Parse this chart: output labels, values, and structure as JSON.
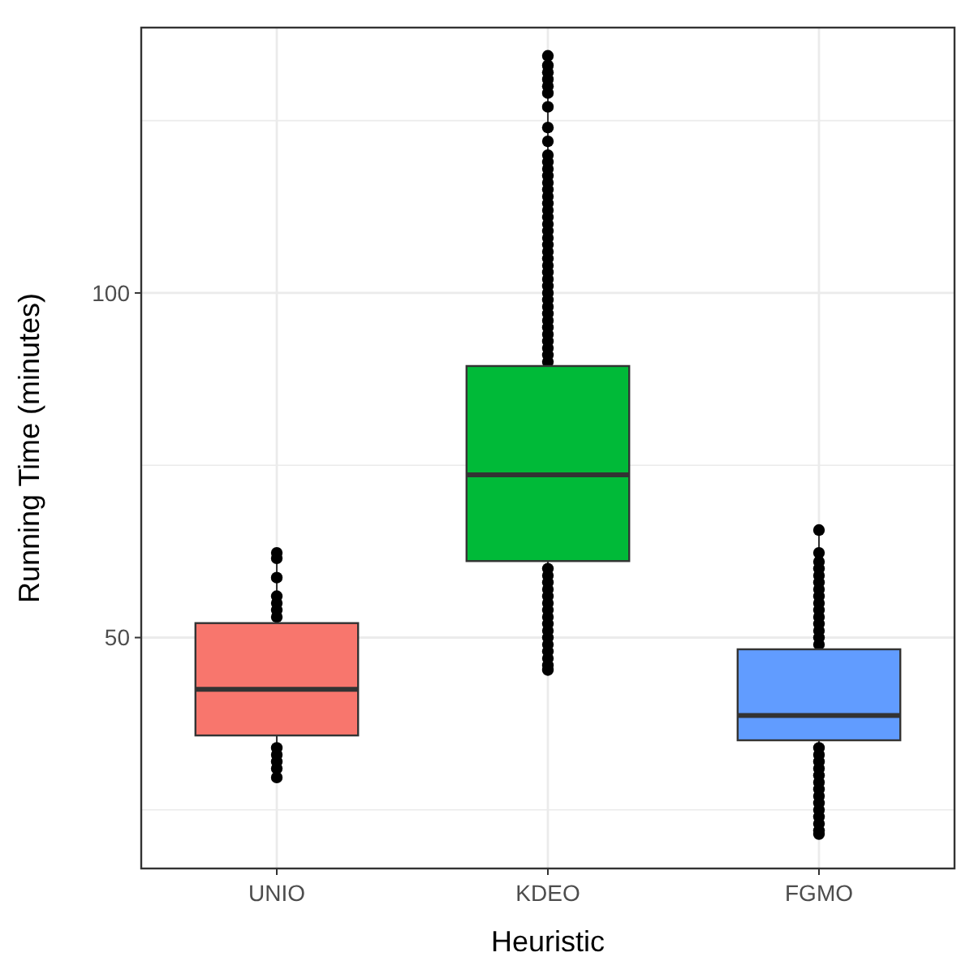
{
  "chart_data": {
    "type": "box",
    "xlabel": "Heuristic",
    "ylabel": "Running Time (minutes)",
    "categories": [
      "UNIO",
      "KDEO",
      "FGMO"
    ],
    "colors": [
      "#f8766d",
      "#00ba38",
      "#619cff"
    ],
    "boxes": [
      {
        "low": 29.7,
        "q1": 35.8,
        "median": 42.5,
        "q3": 52.1,
        "high": 62.3,
        "outliers": [
          29.7,
          31,
          32,
          33,
          34,
          53,
          54,
          55,
          56,
          58.7,
          61.5,
          62.3
        ]
      },
      {
        "low": 45.3,
        "q1": 61.1,
        "median": 73.6,
        "q3": 89.4,
        "high": 134.4,
        "outliers": [
          45.3,
          46,
          47,
          48,
          49,
          50,
          51,
          52,
          53,
          54,
          55,
          56,
          57,
          58,
          59,
          60,
          90,
          91,
          92,
          93,
          94,
          95,
          96,
          97,
          98,
          99,
          100,
          101,
          102,
          103,
          104,
          105,
          106,
          107,
          108,
          109,
          110,
          111,
          112,
          113,
          114,
          115,
          116,
          117,
          118,
          119,
          120,
          122,
          124,
          127,
          129,
          130,
          131,
          132,
          133,
          134.4
        ]
      },
      {
        "low": 21.5,
        "q1": 35.1,
        "median": 38.7,
        "q3": 48.3,
        "high": 65.6,
        "outliers": [
          21.5,
          22,
          23,
          24,
          25,
          26,
          27,
          28,
          29,
          30,
          31,
          32,
          33,
          34,
          49,
          50,
          51,
          52,
          53,
          54,
          55,
          56,
          57,
          58,
          59,
          60,
          61,
          62.3,
          65.6
        ]
      }
    ],
    "ylim": [
      16.5,
      138.5
    ],
    "yticks": [
      {
        "value": 25,
        "label": null
      },
      50,
      {
        "value": 75,
        "label": null
      },
      100,
      {
        "value": 125,
        "label": null
      }
    ],
    "grid": true
  }
}
